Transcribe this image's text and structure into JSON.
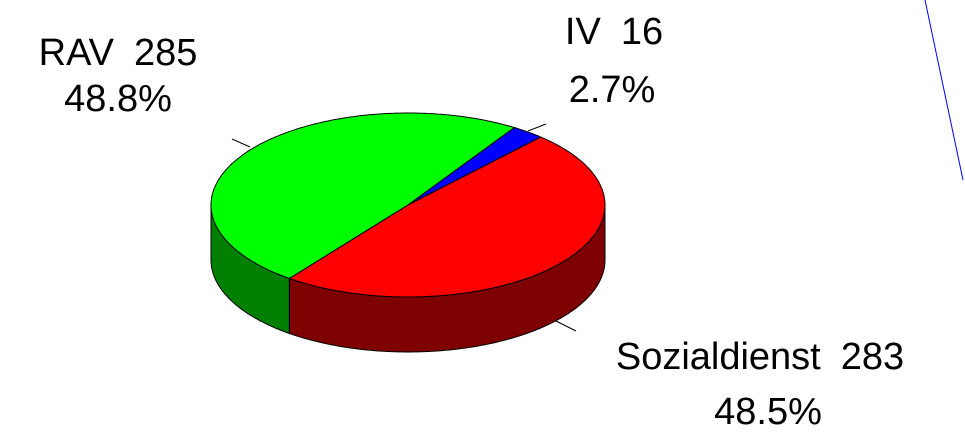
{
  "chart_data": {
    "type": "pie3d",
    "categories": [
      "RAV",
      "IV",
      "Sozialdienst"
    ],
    "counts": [
      285,
      16,
      283
    ],
    "values": [
      48.8,
      2.7,
      48.5
    ],
    "value_labels": [
      "48.8%",
      "2.7%",
      "48.5%"
    ],
    "colors": [
      "#00ff00",
      "#0000ff",
      "#ff0000"
    ]
  }
}
